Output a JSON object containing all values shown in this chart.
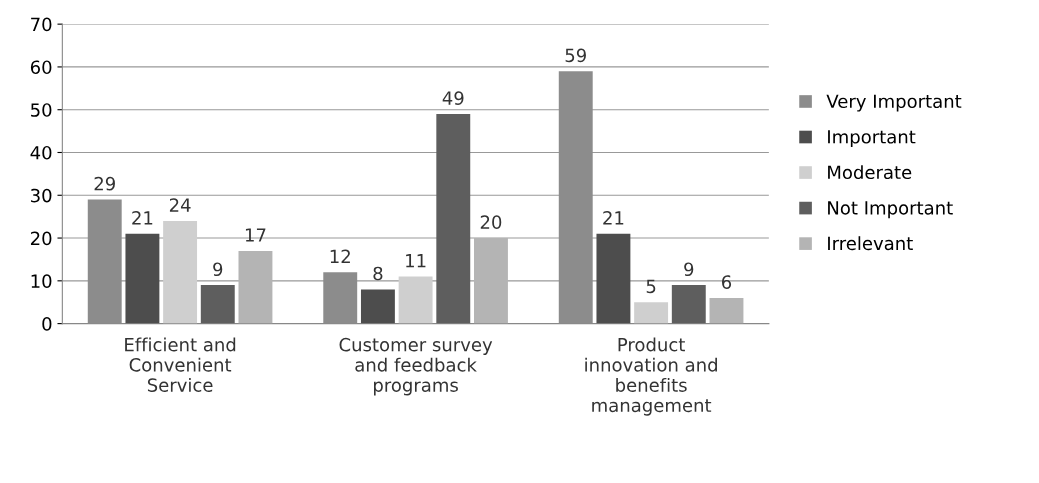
{
  "chart_data": {
    "type": "bar",
    "categories": [
      "Efficient and\nConvenient\nService",
      "Customer survey\nand feedback\nprograms",
      "Product\ninnovation and\nbenefits\nmanagement"
    ],
    "series": [
      {
        "name": "Very Important",
        "color": "#8c8c8c",
        "values": [
          29,
          12,
          59
        ]
      },
      {
        "name": "Important",
        "color": "#4d4d4d",
        "values": [
          21,
          8,
          21
        ]
      },
      {
        "name": "Moderate",
        "color": "#cfcfcf",
        "values": [
          24,
          11,
          5
        ]
      },
      {
        "name": "Not Important",
        "color": "#5e5e5e",
        "values": [
          9,
          49,
          9
        ]
      },
      {
        "name": "Irrelevant",
        "color": "#b4b4b4",
        "values": [
          17,
          20,
          6
        ]
      }
    ],
    "ylim": [
      0,
      70
    ],
    "yticks": [
      0,
      10,
      20,
      30,
      40,
      50,
      60,
      70
    ],
    "grid": "y",
    "legend": "right",
    "data_labels": true
  }
}
